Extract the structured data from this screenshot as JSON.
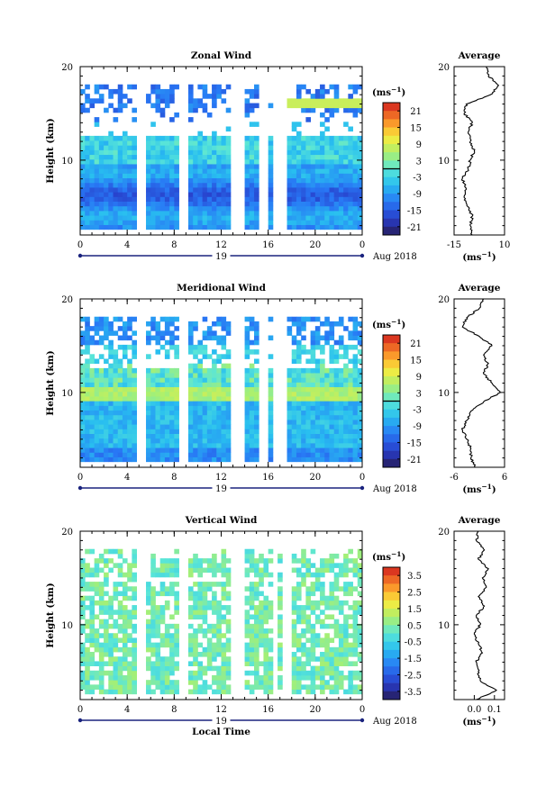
{
  "chart_data": [
    {
      "type": "heatmap",
      "title": "Zonal Wind",
      "ylabel": "Height (km)",
      "xlabel": "",
      "xlim": [
        0,
        24
      ],
      "ylim": [
        2,
        20
      ],
      "x_ticks": [
        "0",
        "4",
        "8",
        "12",
        "16",
        "20",
        "0"
      ],
      "y_ticks": [
        "10",
        "20"
      ],
      "day_label": "19",
      "date_label": "Aug 2018",
      "colorbar": {
        "unit": "(ms",
        "unit_exp": "−1",
        "unit_close": ")",
        "min": -24,
        "max": 24,
        "ticks": [
          "21",
          "15",
          "9",
          "3",
          "-3",
          "-9",
          "-15",
          "-21"
        ],
        "zero_line": 0
      },
      "gaps_hours": [
        5.3,
        8.9,
        13.3,
        13.8,
        15.6,
        16.8,
        17.3
      ],
      "profile": {
        "title": "Average",
        "xlim": [
          -15,
          10
        ],
        "x_ticks": [
          "-15",
          "10"
        ],
        "y_ticks": [
          "10",
          "20"
        ],
        "xlabel": "(ms",
        "xlabel_exp": "−1",
        "xlabel_close": ")",
        "heights": [
          2,
          3,
          4,
          5,
          6,
          7,
          8,
          9,
          10,
          11,
          12,
          13,
          14,
          15,
          16,
          17,
          18,
          19,
          20
        ],
        "values": [
          -6,
          -7,
          -6,
          -8,
          -10,
          -9,
          -11,
          -8,
          -7,
          -5,
          -7,
          -8,
          -6,
          -10,
          -9,
          3,
          7,
          2,
          1
        ]
      }
    },
    {
      "type": "heatmap",
      "title": "Meridional Wind",
      "ylabel": "Height (km)",
      "xlabel": "",
      "xlim": [
        0,
        24
      ],
      "ylim": [
        2,
        20
      ],
      "x_ticks": [
        "0",
        "4",
        "8",
        "12",
        "16",
        "20",
        "0"
      ],
      "y_ticks": [
        "10",
        "20"
      ],
      "day_label": "19",
      "date_label": "Aug 2018",
      "colorbar": {
        "unit": "(ms",
        "unit_exp": "−1",
        "unit_close": ")",
        "min": -24,
        "max": 24,
        "ticks": [
          "21",
          "15",
          "9",
          "3",
          "-3",
          "-9",
          "-15",
          "-21"
        ],
        "zero_line": 0
      },
      "gaps_hours": [
        5.3,
        8.9,
        13.3,
        13.8,
        15.6,
        16.8,
        17.3
      ],
      "profile": {
        "title": "Average",
        "xlim": [
          -6,
          6
        ],
        "x_ticks": [
          "-6",
          "6"
        ],
        "y_ticks": [
          "10",
          "20"
        ],
        "xlabel": "(ms",
        "xlabel_exp": "−1",
        "xlabel_close": ")",
        "heights": [
          2,
          3,
          4,
          5,
          6,
          7,
          8,
          9,
          10,
          11,
          12,
          13,
          14,
          15,
          16,
          17,
          18,
          19,
          20
        ],
        "values": [
          -1,
          -2,
          -2,
          -3,
          -4,
          -3,
          -2,
          1,
          5,
          3,
          1,
          2,
          1,
          3,
          0,
          -4,
          -3,
          0,
          1
        ]
      }
    },
    {
      "type": "heatmap",
      "title": "Vertical Wind",
      "ylabel": "Height (km)",
      "xlabel": "Local Time",
      "xlim": [
        0,
        24
      ],
      "ylim": [
        2,
        20
      ],
      "x_ticks": [
        "0",
        "4",
        "8",
        "12",
        "16",
        "20",
        "0"
      ],
      "y_ticks": [
        "10",
        "20"
      ],
      "day_label": "19",
      "date_label": "Aug 2018",
      "colorbar": {
        "unit": "(ms",
        "unit_exp": "−1",
        "unit_close": ")",
        "min": -4,
        "max": 4,
        "ticks": [
          "3.5",
          "2.5",
          "1.5",
          "0.5",
          "-0.5",
          "-1.5",
          "-2.5",
          "-3.5"
        ],
        "zero_line": null
      },
      "gaps_hours": [
        5.3,
        8.9,
        13.3,
        13.8,
        16.6,
        17.6
      ],
      "profile": {
        "title": "Average",
        "xlim": [
          -0.1,
          0.15
        ],
        "x_ticks": [
          "0.0",
          "0.1"
        ],
        "y_ticks": [
          "10",
          "20"
        ],
        "xlabel": "(ms",
        "xlabel_exp": "−1",
        "xlabel_close": ")",
        "heights": [
          2,
          3,
          4,
          5,
          6,
          7,
          8,
          9,
          10,
          11,
          12,
          13,
          14,
          15,
          16,
          17,
          18,
          19,
          20
        ],
        "values": [
          0.01,
          0.11,
          0.03,
          0.02,
          0.01,
          0.04,
          0.02,
          0.0,
          0.03,
          0.01,
          0.05,
          0.02,
          0.06,
          0.04,
          0.07,
          0.02,
          0.05,
          0.01,
          0.02
        ]
      }
    }
  ]
}
